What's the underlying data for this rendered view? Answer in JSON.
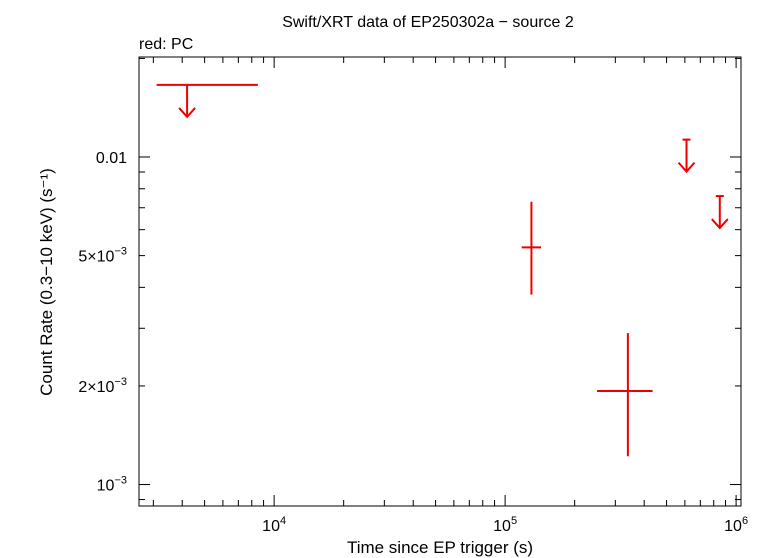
{
  "chart_data": {
    "type": "scatter",
    "title": "Swift/XRT data of EP250302a − source 2",
    "subtitle": "red: PC",
    "xlabel": "Time since EP trigger (s)",
    "ylabel": "Count Rate (0.3−10 keV) (s⁻¹)",
    "x_scale": "log",
    "y_scale": "log",
    "xlim": [
      2600,
      1050000
    ],
    "ylim": [
      0.00086,
      0.0202
    ],
    "x_tick_labels": [
      {
        "value": 10000,
        "base": "10",
        "exp": "4"
      },
      {
        "value": 100000,
        "base": "10",
        "exp": "5"
      },
      {
        "value": 1000000,
        "base": "10",
        "exp": "6"
      }
    ],
    "y_tick_labels": [
      {
        "value": 0.001,
        "mant": "",
        "base": "10",
        "exp": "−3"
      },
      {
        "value": 0.002,
        "mant": "2×",
        "base": "10",
        "exp": "−3"
      },
      {
        "value": 0.005,
        "mant": "5×",
        "base": "10",
        "exp": "−3"
      },
      {
        "value": 0.01,
        "text": "0.01"
      }
    ],
    "color": "#ee0000",
    "series": [
      {
        "name": "PC",
        "detections": [
          {
            "x": 130000,
            "xerr": [
              118000,
              143000
            ],
            "y": 0.0053,
            "yerr": [
              0.0038,
              0.0073
            ]
          },
          {
            "x": 340000,
            "xerr": [
              250000,
              435000
            ],
            "y": 0.00193,
            "yerr": [
              0.00122,
              0.0029
            ]
          }
        ],
        "upper_limits": [
          {
            "x": 4200,
            "xrange": [
              3100,
              8500
            ],
            "y": 0.0166
          },
          {
            "x": 610000,
            "y": 0.0113
          },
          {
            "x": 850000,
            "y": 0.0076
          }
        ]
      }
    ]
  }
}
